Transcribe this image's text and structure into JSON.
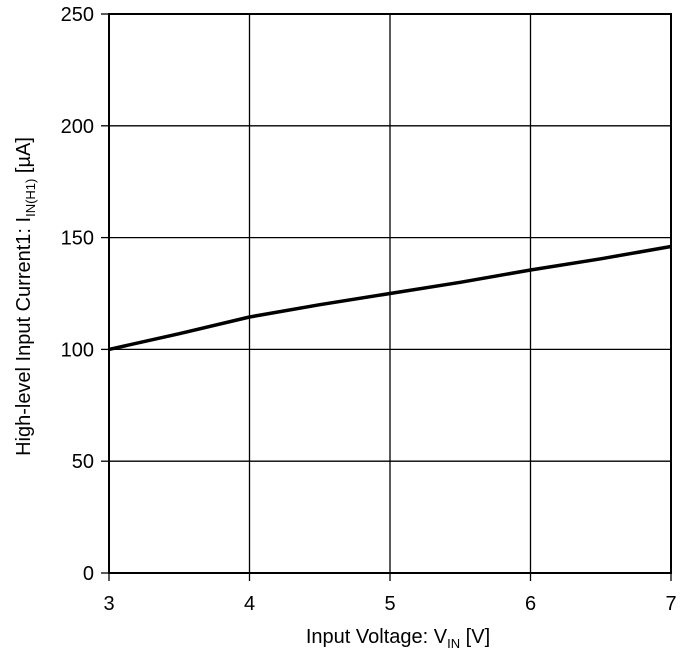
{
  "chart_data": {
    "type": "line",
    "xlabel": {
      "main": "Input Voltage: V",
      "subscript": "IN",
      "suffix": " [V]"
    },
    "ylabel": {
      "main": "High-level Input Current1: I",
      "subscript": "IN(H1)",
      "suffix": " [µA]"
    },
    "xlim": [
      3,
      7
    ],
    "ylim": [
      0,
      250
    ],
    "x_ticks": [
      3,
      4,
      5,
      6,
      7
    ],
    "y_ticks": [
      0,
      50,
      100,
      150,
      200,
      250
    ],
    "x_tick_labels": [
      "3",
      "4",
      "5",
      "6",
      "7"
    ],
    "y_tick_labels": [
      "0",
      "50",
      "100",
      "150",
      "200",
      "250"
    ],
    "grid": true,
    "series": [
      {
        "x": [
          3.0,
          3.5,
          4.0,
          4.5,
          5.0,
          5.5,
          6.0,
          6.5,
          7.0
        ],
        "y": [
          100,
          107,
          114.5,
          120,
          125,
          130,
          135.5,
          140.5,
          146
        ],
        "color": "#000000"
      }
    ]
  }
}
